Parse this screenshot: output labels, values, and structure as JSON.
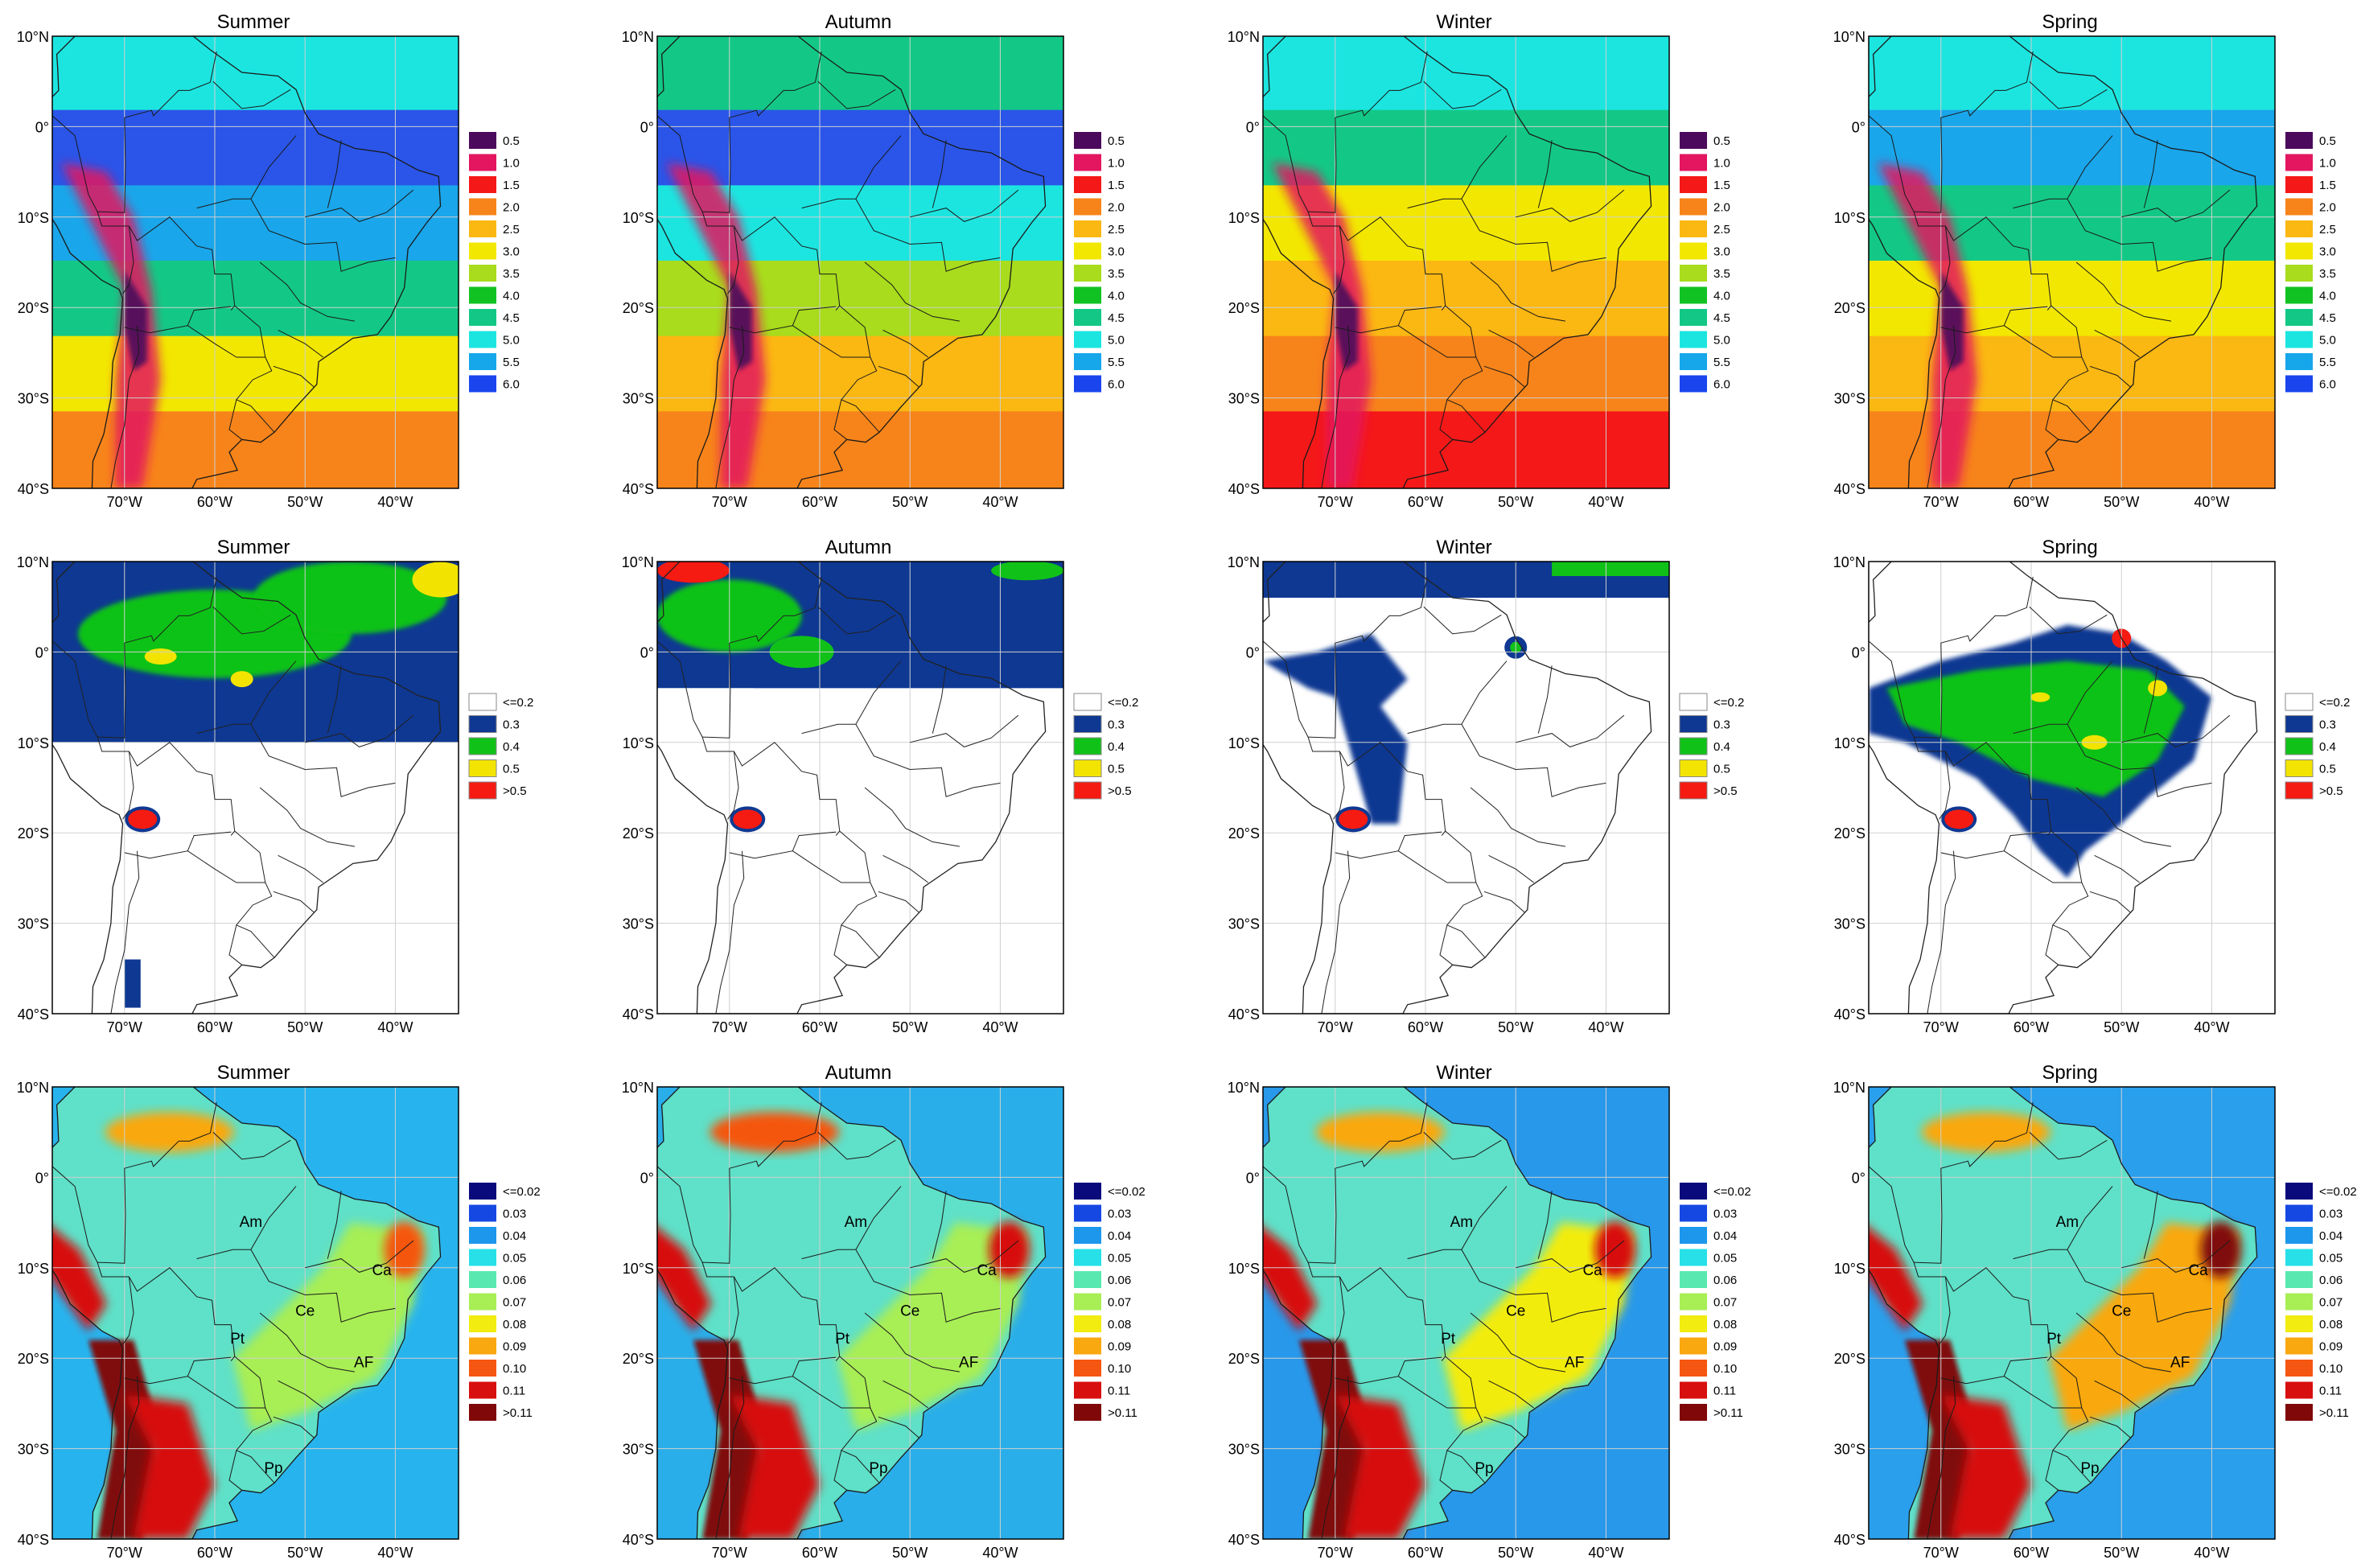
{
  "seasons": [
    "Summer",
    "Autumn",
    "Winter",
    "Spring"
  ],
  "lat_labels": [
    "10°N",
    "0°",
    "10°S",
    "20°S",
    "30°S",
    "40°S"
  ],
  "lon_labels": [
    "70°W",
    "60°W",
    "50°W",
    "40°W"
  ],
  "region_labels": [
    "Am",
    "Ca",
    "Ce",
    "Pt",
    "AF",
    "Pp"
  ],
  "rows": [
    {
      "id": "row1",
      "legend": [
        "0.5",
        "1.0",
        "1.5",
        "2.0",
        "2.5",
        "3.0",
        "3.5",
        "4.0",
        "4.5",
        "5.0",
        "5.5",
        "6.0"
      ],
      "colors": [
        "#4b0a5c",
        "#e3165f",
        "#f51818",
        "#f7841a",
        "#fbb712",
        "#f2e700",
        "#a8dc1c",
        "#11c223",
        "#13c886",
        "#1ce5e0",
        "#16a6ea",
        "#1a45ee"
      ]
    },
    {
      "id": "row2",
      "legend": [
        "<=0.2",
        "0.3",
        "0.4",
        "0.5",
        ">0.5"
      ],
      "colors": [
        "#ffffff",
        "#0e3892",
        "#10c218",
        "#f2e400",
        "#f51a12"
      ]
    },
    {
      "id": "row3",
      "legend": [
        "<=0.02",
        "0.03",
        "0.04",
        "0.05",
        "0.06",
        "0.07",
        "0.08",
        "0.09",
        "0.10",
        "0.11",
        ">0.11"
      ],
      "colors": [
        "#0a0a7c",
        "#1548e3",
        "#1c97ec",
        "#27e0e8",
        "#58e8b0",
        "#a8ee55",
        "#f2ec10",
        "#f9a80f",
        "#f55611",
        "#d70f0f",
        "#800808"
      ]
    }
  ],
  "map_backgrounds": {
    "row1": [
      [
        "#1ce5e0",
        "#2a55e8",
        "#1aa6ea",
        "#13c886",
        "#f2e700",
        "#f7841a"
      ],
      [
        "#13c886",
        "#2a55e8",
        "#1ce5e0",
        "#a8dc1c",
        "#fbb712",
        "#f7841a"
      ],
      [
        "#1ce5e0",
        "#13c886",
        "#f2e700",
        "#fbb712",
        "#f7841a",
        "#f51818"
      ],
      [
        "#1ce5e0",
        "#1aa6ea",
        "#13c886",
        "#f2e700",
        "#fbb712",
        "#f7841a"
      ]
    ],
    "row3": [
      "#27b4ee",
      "#2aaee9",
      "#2898ea",
      "#2a9fec"
    ]
  }
}
